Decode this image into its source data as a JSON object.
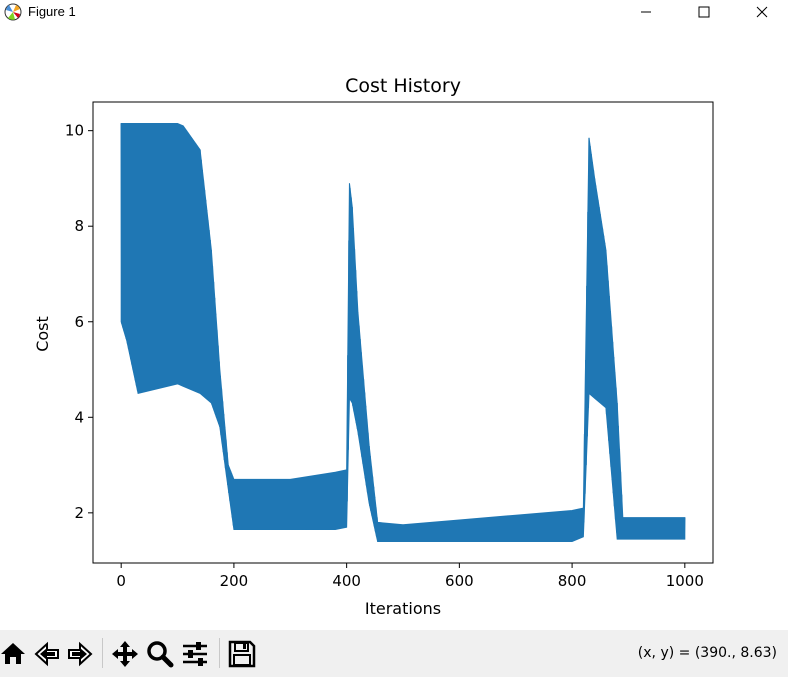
{
  "window": {
    "title": "Figure 1"
  },
  "status": {
    "coords": "(x, y) = (390., 8.63)"
  },
  "colors": {
    "series": "#1f77b4"
  },
  "toolbar_icons": [
    "home-icon",
    "back-icon",
    "forward-icon",
    "pan-icon",
    "zoom-icon",
    "configure-subplots-icon",
    "save-icon"
  ],
  "chart_data": {
    "type": "line",
    "title": "Cost History",
    "xlabel": "Iterations",
    "ylabel": "Cost",
    "xlim": [
      -50,
      1050
    ],
    "ylim": [
      0.95,
      10.6
    ],
    "xticks": [
      0,
      200,
      400,
      600,
      800,
      1000
    ],
    "yticks": [
      2,
      4,
      6,
      8,
      10
    ],
    "grid": false,
    "series": [
      {
        "style": "oscillating band (upper / lower envelope)",
        "x": [
          0,
          10,
          30,
          100,
          110,
          140,
          160,
          175,
          190,
          200,
          300,
          380,
          400,
          405,
          410,
          420,
          440,
          455,
          500,
          600,
          700,
          800,
          820,
          830,
          840,
          860,
          880,
          890,
          1000
        ],
        "upper": [
          10.15,
          10.15,
          10.15,
          10.15,
          10.1,
          9.6,
          7.5,
          5.0,
          3.0,
          2.7,
          2.7,
          2.85,
          2.9,
          8.9,
          8.4,
          6.2,
          3.4,
          1.8,
          1.75,
          1.85,
          1.95,
          2.05,
          2.1,
          9.85,
          9.0,
          7.5,
          4.3,
          1.9,
          1.9
        ],
        "lower": [
          6.0,
          5.6,
          4.5,
          4.7,
          4.65,
          4.5,
          4.3,
          3.8,
          2.5,
          1.65,
          1.65,
          1.65,
          1.7,
          4.4,
          4.3,
          3.7,
          2.2,
          1.4,
          1.4,
          1.4,
          1.4,
          1.4,
          1.5,
          4.5,
          4.4,
          4.2,
          1.45,
          1.45,
          1.45
        ]
      }
    ]
  }
}
